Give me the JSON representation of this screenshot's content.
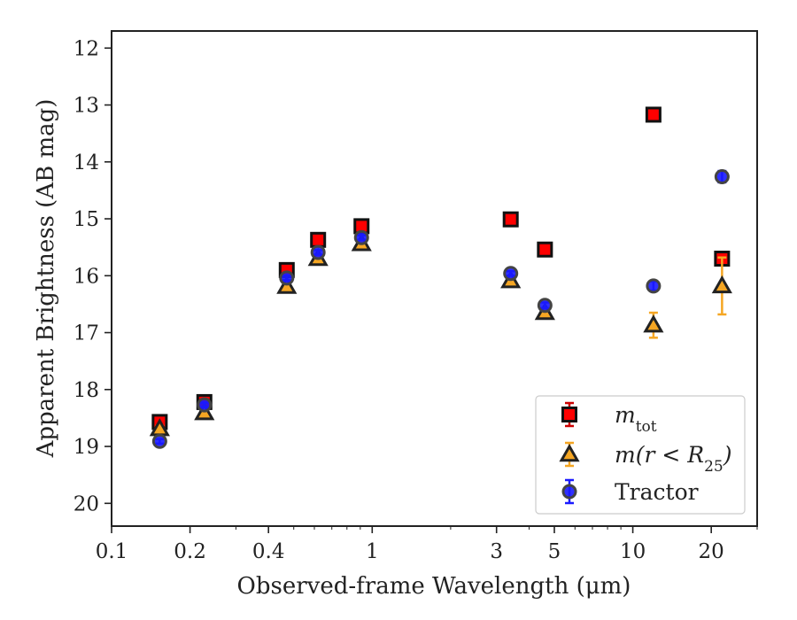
{
  "chart_data": {
    "type": "scatter",
    "xlabel": "Observed-frame Wavelength (μm)",
    "ylabel": "Apparent Brightness (AB mag)",
    "xscale": "log",
    "xlim": [
      0.1,
      30
    ],
    "ylim": [
      20.4,
      11.7
    ],
    "y_inverted": true,
    "x_ticks": [
      {
        "value": 0.1,
        "label": "0.1"
      },
      {
        "value": 0.2,
        "label": "0.2"
      },
      {
        "value": 0.4,
        "label": "0.4"
      },
      {
        "value": 1,
        "label": "1"
      },
      {
        "value": 3,
        "label": "3"
      },
      {
        "value": 5,
        "label": "5"
      },
      {
        "value": 10,
        "label": "10"
      },
      {
        "value": 20,
        "label": "20"
      }
    ],
    "y_ticks": [
      12,
      13,
      14,
      15,
      16,
      17,
      18,
      19,
      20
    ],
    "legend_position": "lower-right",
    "series": [
      {
        "name": "m_tot",
        "legend_label": "m",
        "legend_sub": "tot",
        "marker": "square",
        "fill": "#ff0000",
        "edge": "#111111",
        "err_color": "#cc0000",
        "points": [
          {
            "x": 0.153,
            "y": 18.57,
            "err": 0.05
          },
          {
            "x": 0.227,
            "y": 18.22,
            "err": 0.05
          },
          {
            "x": 0.47,
            "y": 15.9,
            "err": 0.04
          },
          {
            "x": 0.62,
            "y": 15.37,
            "err": 0.04
          },
          {
            "x": 0.91,
            "y": 15.13,
            "err": 0.04
          },
          {
            "x": 3.4,
            "y": 15.01,
            "err": 0.03
          },
          {
            "x": 4.6,
            "y": 15.54,
            "err": 0.03
          },
          {
            "x": 12.0,
            "y": 13.17,
            "err": 0.03
          },
          {
            "x": 22.0,
            "y": 15.7,
            "err": 0.05
          }
        ]
      },
      {
        "name": "m(r<R25)",
        "legend_label": "m(r < R",
        "legend_sub": "25",
        "legend_close": ")",
        "marker": "triangle",
        "fill": "#f5a623",
        "edge": "#222222",
        "err_color": "#f5a623",
        "points": [
          {
            "x": 0.153,
            "y": 18.69,
            "err": 0.05
          },
          {
            "x": 0.227,
            "y": 18.41,
            "err": 0.05
          },
          {
            "x": 0.47,
            "y": 16.19,
            "err": 0.04
          },
          {
            "x": 0.62,
            "y": 15.7,
            "err": 0.04
          },
          {
            "x": 0.91,
            "y": 15.44,
            "err": 0.04
          },
          {
            "x": 3.4,
            "y": 16.09,
            "err": 0.04
          },
          {
            "x": 4.6,
            "y": 16.65,
            "err": 0.05
          },
          {
            "x": 12.0,
            "y": 16.87,
            "err": 0.22
          },
          {
            "x": 22.0,
            "y": 16.18,
            "err": 0.5
          }
        ]
      },
      {
        "name": "Tractor",
        "legend_label": "Tractor",
        "marker": "circle",
        "fill": "#1a1aff",
        "edge": "#444444",
        "err_color": "#1a1aff",
        "points": [
          {
            "x": 0.153,
            "y": 18.91,
            "err": 0.04
          },
          {
            "x": 0.227,
            "y": 18.27,
            "err": 0.04
          },
          {
            "x": 0.47,
            "y": 16.04,
            "err": 0.04
          },
          {
            "x": 0.62,
            "y": 15.59,
            "err": 0.04
          },
          {
            "x": 0.91,
            "y": 15.33,
            "err": 0.04
          },
          {
            "x": 3.4,
            "y": 15.96,
            "err": 0.04
          },
          {
            "x": 4.6,
            "y": 16.52,
            "err": 0.05
          },
          {
            "x": 12.0,
            "y": 16.18,
            "err": 0.08
          },
          {
            "x": 22.0,
            "y": 14.26,
            "err": 0.1
          }
        ]
      }
    ]
  }
}
